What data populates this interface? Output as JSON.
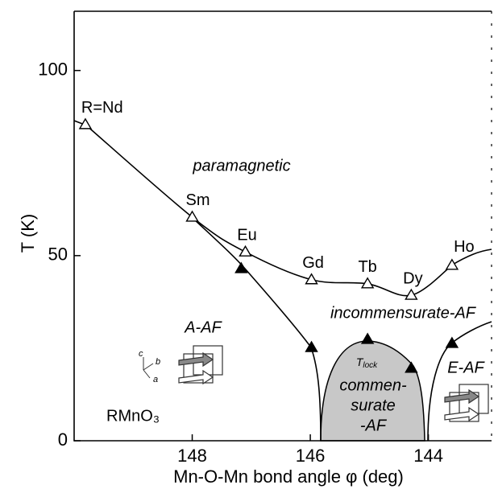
{
  "chart_data": {
    "type": "scatter",
    "xlabel": "Mn-O-Mn bond angle φ  (deg)",
    "ylabel": "T (K)",
    "xlim": [
      150,
      142.93
    ],
    "ylim": [
      0,
      116
    ],
    "xticks": [
      148,
      146,
      144
    ],
    "yticks": [
      0,
      50,
      100
    ],
    "series": [
      {
        "marker": "open",
        "line": true,
        "color": "#000000",
        "x": [
          149.81,
          148,
          147.1,
          145.98,
          145.03,
          144.29,
          143.6
        ],
        "values": [
          85.4,
          60.4,
          51,
          43.5,
          42.4,
          39.3,
          47.4
        ],
        "point_labels": [
          "R=Nd",
          "Sm",
          "Eu",
          "Gd",
          "Tb",
          "Dy",
          "Ho"
        ]
      },
      {
        "marker": "filled",
        "line": false,
        "color": "#000000",
        "x": [
          147.17,
          145.98,
          145.03,
          144.29,
          143.6
        ],
        "values": [
          46.5,
          25.2,
          27.4,
          19.6,
          26.3
        ]
      }
    ],
    "annotations": [
      "paramagnetic",
      "incommensurate-AF",
      "A-AF",
      "E-AF",
      "RMnO₃"
    ],
    "commensurate_label": [
      "commen-",
      "surate",
      "-AF"
    ],
    "tlock_label": {
      "main": "T",
      "sub": "lock"
    }
  }
}
